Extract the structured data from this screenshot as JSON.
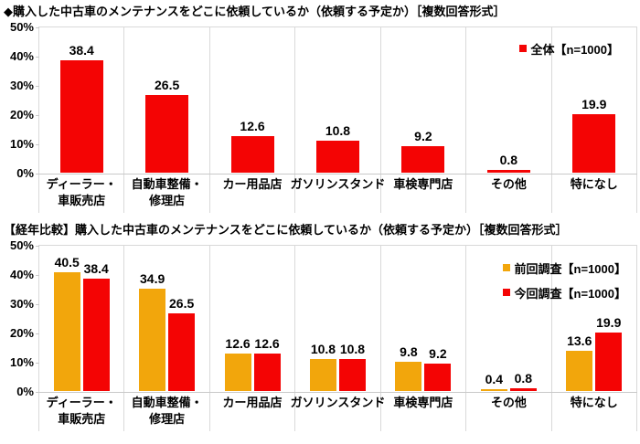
{
  "colors": {
    "current_survey_red": "#f40404",
    "previous_survey_orange": "#f2a60c",
    "grid_gray": "#d9d9d9",
    "axis_gray": "#c9c9c9",
    "text_black": "#000000",
    "background": "#ffffff"
  },
  "chart_data": [
    {
      "type": "bar",
      "title": "◆購入した中古車のメンテナンスをどこに依頼しているか（依頼する予定か）［複数回答形式］",
      "categories": [
        "ディーラー・\n車販売店",
        "自動車整備・\n修理店",
        "カー用品店",
        "ガソリンスタンド",
        "車検専門店",
        "その他",
        "特になし"
      ],
      "series": [
        {
          "name": "全体【n=1000】",
          "color": "#f40404",
          "values": [
            38.4,
            26.5,
            12.6,
            10.8,
            9.2,
            0.8,
            19.9
          ]
        }
      ],
      "xlabel": "",
      "ylabel": "",
      "ylim": [
        0,
        50
      ],
      "yticks": [
        0,
        10,
        20,
        30,
        40,
        50
      ],
      "ytick_suffix": "%",
      "grid": "vertical-category-separators",
      "legend_position": "inside-top-right",
      "value_labels": "one-decimal-above-bars"
    },
    {
      "type": "bar",
      "title": "【経年比較】購入した中古車のメンテナンスをどこに依頼しているか（依頼する予定か）［複数回答形式］",
      "categories": [
        "ディーラー・\n車販売店",
        "自動車整備・\n修理店",
        "カー用品店",
        "ガソリンスタンド",
        "車検専門店",
        "その他",
        "特になし"
      ],
      "series": [
        {
          "name": "前回調査【n=1000】",
          "color": "#f2a60c",
          "values": [
            40.5,
            34.9,
            12.6,
            10.8,
            9.8,
            0.4,
            13.6
          ]
        },
        {
          "name": "今回調査【n=1000】",
          "color": "#f40404",
          "values": [
            38.4,
            26.5,
            12.6,
            10.8,
            9.2,
            0.8,
            19.9
          ]
        }
      ],
      "xlabel": "",
      "ylabel": "",
      "ylim": [
        0,
        50
      ],
      "yticks": [
        0,
        10,
        20,
        30,
        40,
        50
      ],
      "ytick_suffix": "%",
      "grid": "vertical-category-separators",
      "legend_position": "inside-top-right",
      "value_labels": "one-decimal-above-bars"
    }
  ]
}
